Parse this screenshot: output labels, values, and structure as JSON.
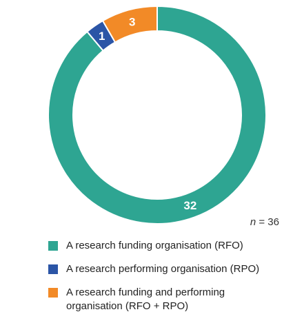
{
  "chart_data": {
    "type": "pie",
    "donut": true,
    "slices": [
      {
        "label": "A research funding organisation (RFO)",
        "value": 32,
        "color": "#2ea592"
      },
      {
        "label": "A research performing organisation (RPO)",
        "value": 1,
        "color": "#2b55a6"
      },
      {
        "label": "A research funding and performing organisation (RFO + RPO)",
        "value": 3,
        "color": "#f28a27"
      }
    ],
    "slice_order_clockwise_from_top": [
      0,
      1,
      2
    ],
    "n_label": "n",
    "n_value": "= 36",
    "legend_placement": "bottom"
  }
}
